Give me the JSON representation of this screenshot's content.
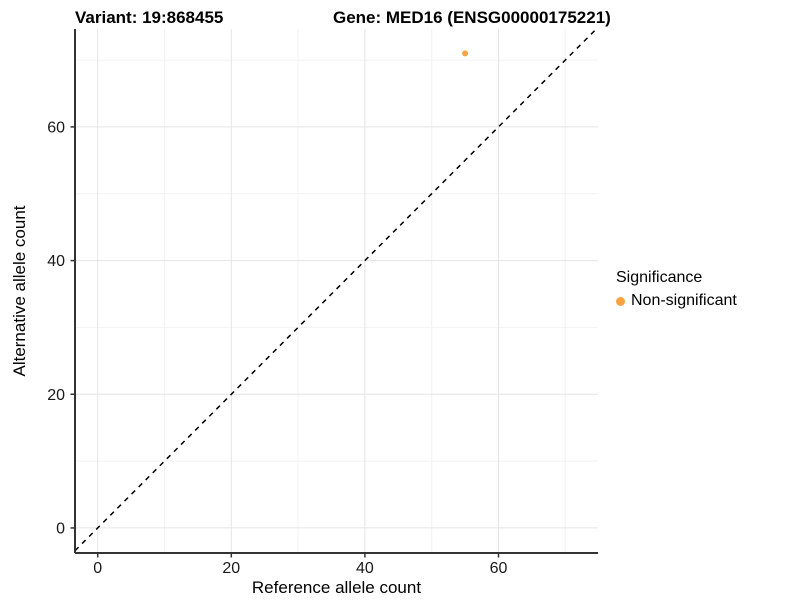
{
  "chart_data": {
    "type": "scatter",
    "title_left": "Variant: 19:868455",
    "title_right": "Gene: MED16 (ENSG00000175221)",
    "xlabel": "Reference allele count",
    "ylabel": "Alternative allele count",
    "xlim": [
      -3.4,
      74.9
    ],
    "ylim": [
      -3.75,
      74.65
    ],
    "x_major_ticks": [
      0,
      20,
      40,
      60
    ],
    "x_minor_ticks": [
      10,
      30,
      50,
      70
    ],
    "y_major_ticks": [
      0,
      20,
      40,
      60
    ],
    "y_minor_ticks": [
      10,
      30,
      50,
      70
    ],
    "grid": true,
    "reference_line": {
      "slope": 1,
      "intercept": 0,
      "style": "dashed",
      "color": "#000000"
    },
    "series": [
      {
        "name": "Non-significant",
        "color": "#F9A242",
        "points": [
          {
            "x": 55,
            "y": 71
          }
        ]
      }
    ],
    "legend": {
      "title": "Significance",
      "position": "right"
    },
    "colors": {
      "background": "#ffffff",
      "grid_major": "#e4e4e4",
      "grid_minor": "#f2f2f2",
      "axis_line": "#333333",
      "tick_label": "#1a1a1a"
    }
  }
}
